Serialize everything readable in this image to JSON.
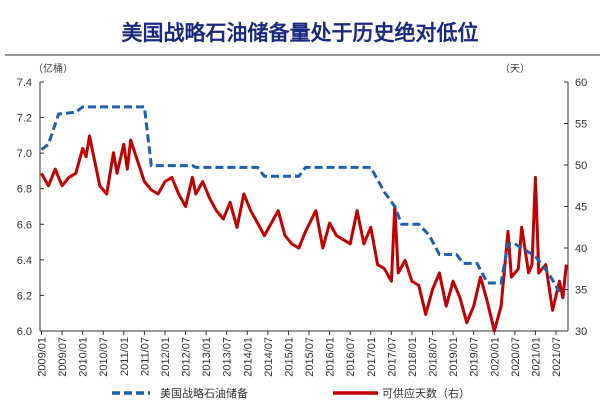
{
  "chart_data": {
    "type": "line",
    "title": "美国战略石油储备量处于历史绝对低位",
    "left_unit": "（亿桶）",
    "right_unit": "（天）",
    "x_ticks": [
      "2009/01",
      "2009/07",
      "2010/01",
      "2010/07",
      "2011/01",
      "2011/07",
      "2012/01",
      "2012/07",
      "2013/01",
      "2013/07",
      "2014/01",
      "2014/07",
      "2015/01",
      "2015/07",
      "2016/01",
      "2016/07",
      "2017/01",
      "2017/07",
      "2018/01",
      "2018/07",
      "2019/01",
      "2019/07",
      "2020/01",
      "2020/07",
      "2021/01",
      "2021/07"
    ],
    "y_left": {
      "lim": [
        6.0,
        7.4
      ],
      "ticks": [
        "6.0",
        "6.2",
        "6.4",
        "6.6",
        "6.8",
        "7.0",
        "7.2",
        "7.4"
      ]
    },
    "y_right": {
      "lim": [
        30,
        60
      ],
      "ticks": [
        "30",
        "35",
        "40",
        "45",
        "50",
        "55",
        "60"
      ]
    },
    "grid": false,
    "legend_position": "bottom",
    "series": [
      {
        "name": "美国战略石油储备",
        "axis": "left",
        "style": "dashed",
        "color": "#1f5fae",
        "points": [
          [
            "2009/01",
            7.02
          ],
          [
            "2009/03",
            7.05
          ],
          [
            "2009/06",
            7.22
          ],
          [
            "2009/11",
            7.23
          ],
          [
            "2010/01",
            7.26
          ],
          [
            "2011/07",
            7.26
          ],
          [
            "2011/09",
            6.93
          ],
          [
            "2012/09",
            6.93
          ],
          [
            "2012/10",
            6.92
          ],
          [
            "2014/04",
            6.92
          ],
          [
            "2014/06",
            6.87
          ],
          [
            "2015/04",
            6.87
          ],
          [
            "2015/06",
            6.92
          ],
          [
            "2017/01",
            6.92
          ],
          [
            "2017/05",
            6.78
          ],
          [
            "2017/08",
            6.7
          ],
          [
            "2017/10",
            6.6
          ],
          [
            "2018/03",
            6.6
          ],
          [
            "2018/06",
            6.54
          ],
          [
            "2018/09",
            6.43
          ],
          [
            "2019/02",
            6.43
          ],
          [
            "2019/04",
            6.38
          ],
          [
            "2019/08",
            6.38
          ],
          [
            "2019/11",
            6.27
          ],
          [
            "2020/03",
            6.27
          ],
          [
            "2020/05",
            6.49
          ],
          [
            "2020/07",
            6.49
          ],
          [
            "2021/01",
            6.42
          ],
          [
            "2021/05",
            6.32
          ],
          [
            "2021/08",
            6.22
          ]
        ]
      },
      {
        "name": "可供应天数（右）",
        "axis": "right",
        "style": "solid",
        "color": "#c00000",
        "points": [
          [
            "2009/01",
            49
          ],
          [
            "2009/03",
            47.5
          ],
          [
            "2009/05",
            49.5
          ],
          [
            "2009/07",
            47.5
          ],
          [
            "2009/09",
            48.5
          ],
          [
            "2009/11",
            49
          ],
          [
            "2010/01",
            52
          ],
          [
            "2010/02",
            51
          ],
          [
            "2010/03",
            53.5
          ],
          [
            "2010/04",
            51.5
          ],
          [
            "2010/06",
            47.5
          ],
          [
            "2010/08",
            46.5
          ],
          [
            "2010/10",
            51.5
          ],
          [
            "2010/11",
            49
          ],
          [
            "2011/01",
            52.5
          ],
          [
            "2011/02",
            49.5
          ],
          [
            "2011/03",
            53
          ],
          [
            "2011/05",
            50.5
          ],
          [
            "2011/07",
            48
          ],
          [
            "2011/09",
            47
          ],
          [
            "2011/11",
            46.5
          ],
          [
            "2012/01",
            48
          ],
          [
            "2012/03",
            48.5
          ],
          [
            "2012/05",
            46.5
          ],
          [
            "2012/07",
            45
          ],
          [
            "2012/09",
            48.5
          ],
          [
            "2012/10",
            46.5
          ],
          [
            "2012/12",
            48
          ],
          [
            "2013/02",
            46
          ],
          [
            "2013/04",
            44.5
          ],
          [
            "2013/06",
            43.5
          ],
          [
            "2013/08",
            45.5
          ],
          [
            "2013/10",
            42.5
          ],
          [
            "2013/12",
            46.5
          ],
          [
            "2014/02",
            44.5
          ],
          [
            "2014/04",
            43
          ],
          [
            "2014/06",
            41.5
          ],
          [
            "2014/08",
            43
          ],
          [
            "2014/10",
            44.5
          ],
          [
            "2014/12",
            41.5
          ],
          [
            "2015/02",
            40.5
          ],
          [
            "2015/04",
            40
          ],
          [
            "2015/06",
            42
          ],
          [
            "2015/09",
            44.5
          ],
          [
            "2015/11",
            40
          ],
          [
            "2016/01",
            43
          ],
          [
            "2016/03",
            41.5
          ],
          [
            "2016/05",
            41
          ],
          [
            "2016/07",
            40.5
          ],
          [
            "2016/09",
            44.5
          ],
          [
            "2016/11",
            40.5
          ],
          [
            "2017/01",
            42.5
          ],
          [
            "2017/03",
            38
          ],
          [
            "2017/05",
            37.5
          ],
          [
            "2017/07",
            36
          ],
          [
            "2017/08",
            45
          ],
          [
            "2017/09",
            37
          ],
          [
            "2017/11",
            38.5
          ],
          [
            "2018/01",
            36
          ],
          [
            "2018/03",
            35.5
          ],
          [
            "2018/05",
            32
          ],
          [
            "2018/07",
            35
          ],
          [
            "2018/09",
            37
          ],
          [
            "2018/11",
            33
          ],
          [
            "2019/01",
            36
          ],
          [
            "2019/03",
            34
          ],
          [
            "2019/05",
            31
          ],
          [
            "2019/07",
            33
          ],
          [
            "2019/09",
            36.5
          ],
          [
            "2019/11",
            33.5
          ],
          [
            "2020/01",
            30
          ],
          [
            "2020/03",
            33
          ],
          [
            "2020/05",
            42
          ],
          [
            "2020/06",
            36.5
          ],
          [
            "2020/08",
            37.5
          ],
          [
            "2020/09",
            42.5
          ],
          [
            "2020/11",
            37
          ],
          [
            "2020/12",
            38
          ],
          [
            "2021/01",
            48.5
          ],
          [
            "2021/02",
            37
          ],
          [
            "2021/04",
            38
          ],
          [
            "2021/06",
            32.5
          ],
          [
            "2021/08",
            36
          ],
          [
            "2021/09",
            34
          ],
          [
            "2021/10",
            38
          ]
        ]
      }
    ]
  }
}
